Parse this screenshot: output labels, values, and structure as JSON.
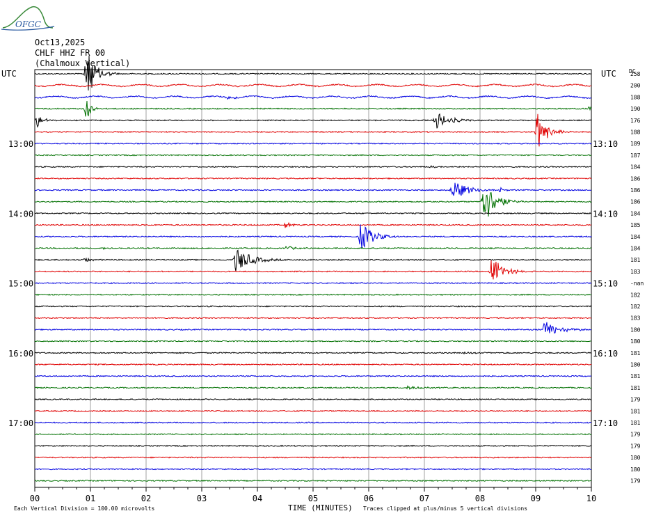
{
  "logo": {
    "text": "OFGC"
  },
  "header": {
    "date": "Oct13,2025",
    "station": "CHLF HHZ FR 00",
    "location": "(Chalmoux Vertical)"
  },
  "utc_left": "UTC",
  "utc_right": "UTC",
  "dc_label": "DC",
  "footer": {
    "scale_note": "Each Vertical Division =  100.00 microvolts",
    "clip_note": "Traces clipped at plus/minus 5 vertical divisions",
    "x_axis_label": "TIME (MINUTES)"
  },
  "chart_data": {
    "type": "line",
    "xlabel": "TIME (MINUTES)",
    "xlim": [
      0,
      10
    ],
    "x_ticks": [
      "00",
      "01",
      "02",
      "03",
      "04",
      "05",
      "06",
      "07",
      "08",
      "09",
      "10"
    ],
    "trace_colors": [
      "#000000",
      "#e00000",
      "#0000e0",
      "#007000"
    ],
    "rows_per_hour": 6,
    "left_time_labels": [
      {
        "row": 6,
        "text": "13:00"
      },
      {
        "row": 12,
        "text": "14:00"
      },
      {
        "row": 18,
        "text": "15:00"
      },
      {
        "row": 24,
        "text": "16:00"
      },
      {
        "row": 30,
        "text": "17:00"
      }
    ],
    "right_time_labels": [
      {
        "row": 6,
        "text": "13:10"
      },
      {
        "row": 12,
        "text": "14:10"
      },
      {
        "row": 18,
        "text": "15:10"
      },
      {
        "row": 24,
        "text": "16:10"
      },
      {
        "row": 30,
        "text": "17:10"
      }
    ],
    "dc_offsets": [
      "258",
      "200",
      "188",
      "190",
      "176",
      "188",
      "189",
      "187",
      "184",
      "186",
      "186",
      "186",
      "184",
      "185",
      "184",
      "184",
      "181",
      "183",
      "-nan",
      "182",
      "182",
      "183",
      "180",
      "180",
      "181",
      "180",
      "181",
      "181",
      "179",
      "181",
      "181",
      "179",
      "179",
      "180",
      "180",
      "179"
    ],
    "events": [
      {
        "row": 0,
        "t": 0.92,
        "amp": 5,
        "dur": 0.25
      },
      {
        "row": 2,
        "t": 3.45,
        "amp": 0.5,
        "dur": 0.15
      },
      {
        "row": 3,
        "t": 0.92,
        "amp": 3,
        "dur": 0.1
      },
      {
        "row": 3,
        "t": 9.95,
        "amp": 0.5,
        "dur": 0.2
      },
      {
        "row": 4,
        "t": 0.03,
        "amp": 1.6,
        "dur": 0.15
      },
      {
        "row": 4,
        "t": 7.2,
        "amp": 1.7,
        "dur": 0.35
      },
      {
        "row": 5,
        "t": 9.02,
        "amp": 4,
        "dur": 0.25
      },
      {
        "row": 8,
        "t": 7.1,
        "amp": 0.25,
        "dur": 0.3
      },
      {
        "row": 10,
        "t": 7.5,
        "amp": 2,
        "dur": 0.4
      },
      {
        "row": 10,
        "t": 8.35,
        "amp": 0.5,
        "dur": 0.15
      },
      {
        "row": 11,
        "t": 8.05,
        "amp": 5,
        "dur": 0.3
      },
      {
        "row": 13,
        "t": 4.5,
        "amp": 0.6,
        "dur": 0.15
      },
      {
        "row": 14,
        "t": 5.85,
        "amp": 3,
        "dur": 0.3
      },
      {
        "row": 15,
        "t": 1.2,
        "amp": 0.25,
        "dur": 0.15
      },
      {
        "row": 15,
        "t": 4.5,
        "amp": 0.4,
        "dur": 0.3
      },
      {
        "row": 16,
        "t": 0.9,
        "amp": 0.5,
        "dur": 0.15
      },
      {
        "row": 16,
        "t": 3.6,
        "amp": 2.5,
        "dur": 0.4
      },
      {
        "row": 17,
        "t": 8.2,
        "amp": 3,
        "dur": 0.3
      },
      {
        "row": 22,
        "t": 9.15,
        "amp": 1.6,
        "dur": 0.4
      },
      {
        "row": 24,
        "t": 7.7,
        "amp": 0.25,
        "dur": 0.3
      },
      {
        "row": 27,
        "t": 6.7,
        "amp": 0.35,
        "dur": 0.4
      }
    ]
  }
}
